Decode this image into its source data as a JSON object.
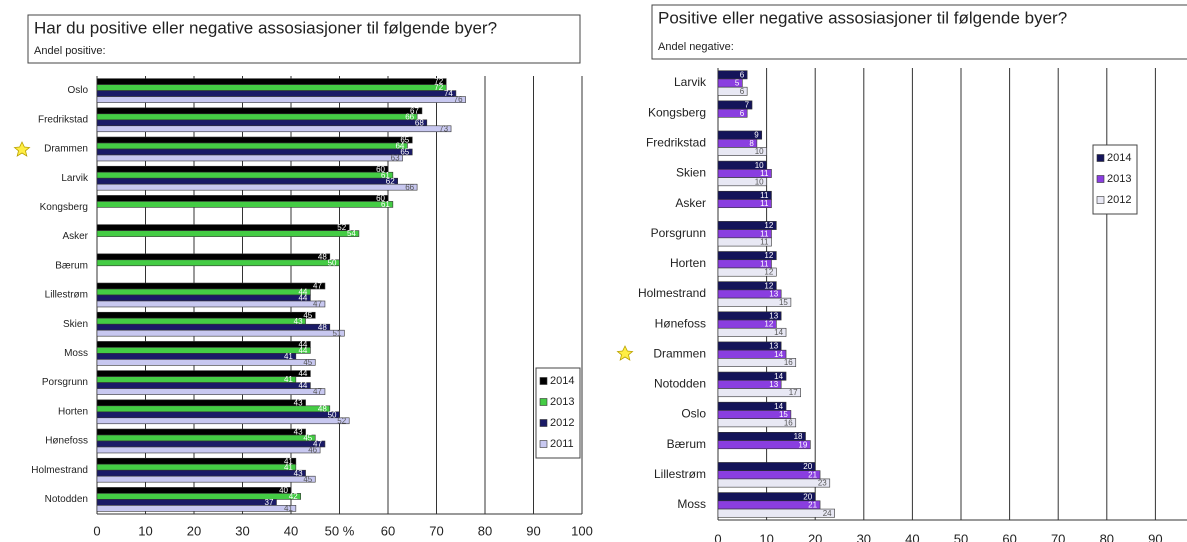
{
  "chart_data": [
    {
      "type": "bar",
      "orientation": "horizontal",
      "title": "Har du positive eller negative assosiasjoner til følgende byer?",
      "subtitle": "Andel positive:",
      "categories": [
        "Oslo",
        "Fredrikstad",
        "Drammen",
        "Larvik",
        "Kongsberg",
        "Asker",
        "Bærum",
        "Lillestrøm",
        "Skien",
        "Moss",
        "Porsgrunn",
        "Horten",
        "Hønefoss",
        "Holmestrand",
        "Notodden"
      ],
      "series": [
        {
          "name": "2014",
          "color": "#000000",
          "values": [
            72,
            67,
            65,
            60,
            60,
            52,
            48,
            47,
            45,
            44,
            44,
            43,
            43,
            41,
            40
          ]
        },
        {
          "name": "2013",
          "color": "#44cc44",
          "values": [
            72,
            66,
            64,
            61,
            61,
            54,
            50,
            44,
            43,
            44,
            41,
            48,
            45,
            41,
            42
          ]
        },
        {
          "name": "2012",
          "color": "#1a1a66",
          "values": [
            74,
            68,
            65,
            62,
            null,
            null,
            null,
            44,
            48,
            41,
            44,
            50,
            47,
            43,
            37
          ]
        },
        {
          "name": "2011",
          "color": "#c8c8f0",
          "values": [
            76,
            73,
            63,
            66,
            null,
            null,
            null,
            47,
            51,
            45,
            47,
            52,
            46,
            45,
            41
          ]
        }
      ],
      "xlim": [
        0,
        100
      ],
      "xticks": [
        0,
        10,
        20,
        30,
        40,
        {
          "value": 50,
          "label": "50 %"
        },
        60,
        70,
        80,
        90,
        100
      ],
      "grid": true,
      "legend": "lower right"
    },
    {
      "type": "bar",
      "orientation": "horizontal",
      "title": "Positive eller negative assosiasjoner til følgende byer?",
      "subtitle": "Andel negative:",
      "categories": [
        "Larvik",
        "Kongsberg",
        "Fredrikstad",
        "Skien",
        "Asker",
        "Porsgrunn",
        "Horten",
        "Holmestrand",
        "Hønefoss",
        "Drammen",
        "Notodden",
        "Oslo",
        "Bærum",
        "Lillestrøm",
        "Moss"
      ],
      "series": [
        {
          "name": "2014",
          "color": "#14145a",
          "values": [
            6,
            7,
            9,
            10,
            11,
            12,
            12,
            12,
            13,
            13,
            14,
            14,
            18,
            20,
            20
          ]
        },
        {
          "name": "2013",
          "color": "#8a3ee0",
          "values": [
            5,
            6,
            8,
            11,
            11,
            11,
            11,
            13,
            12,
            14,
            13,
            15,
            19,
            21,
            21
          ]
        },
        {
          "name": "2012",
          "color": "#e8e8f4",
          "values": [
            6,
            null,
            10,
            10,
            null,
            11,
            12,
            15,
            14,
            16,
            17,
            16,
            null,
            23,
            24
          ]
        }
      ],
      "xlim": [
        0,
        100
      ],
      "xticks": [
        0,
        10,
        20,
        30,
        40,
        50,
        60,
        70,
        80,
        90
      ],
      "grid": true,
      "legend": "upper right"
    }
  ]
}
